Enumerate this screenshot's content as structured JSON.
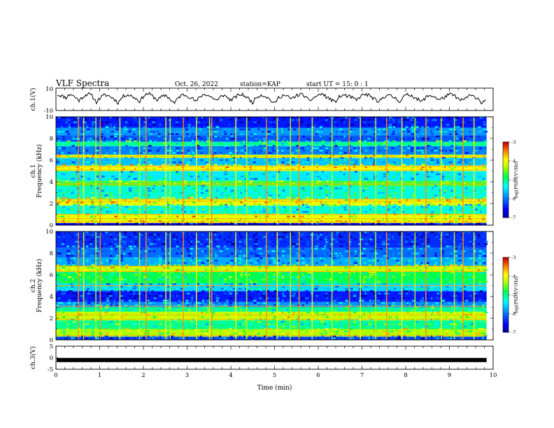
{
  "header": {
    "title": "VLF Spectra",
    "date": "Oct. 26, 2022",
    "station": "station=KAP",
    "start": "start  UT =  15: 0  : 1"
  },
  "chart_data": [
    {
      "type": "line",
      "id": "ch1_waveform",
      "ylabel": "ch.1(V)",
      "ylim": [
        -10,
        10
      ],
      "yticks": [
        "10",
        "-10"
      ],
      "xlim": [
        0,
        10
      ],
      "x_end": 9.85,
      "series": [
        {
          "values": [
            4.2,
            3.1,
            1.5,
            4.8,
            2.2,
            -1.0,
            2.5,
            5.1,
            3.0,
            -2.4,
            1.8,
            4.0,
            2.9,
            0.6,
            -3.0,
            2.1,
            4.4,
            3.2,
            1.0,
            -1.8,
            3.5,
            5.2,
            2.7,
            -0.5,
            1.9,
            3.8,
            0.2,
            -3.6,
            2.0,
            4.1,
            3.3,
            1.2,
            -2.1,
            2.6,
            4.7,
            3.0,
            0.8,
            -1.2,
            3.9,
            2.4,
            -0.8,
            1.7,
            4.3,
            3.6,
            0.9,
            -2.9,
            2.2,
            4.0,
            2.8,
            0.0,
            -4.2,
            1.5,
            3.7,
            2.5,
            0.3,
            2.9,
            4.6,
            3.1,
            -1.5,
            1.0,
            3.4,
            4.9,
            2.2,
            0.1,
            -2.6,
            2.0,
            3.8,
            2.7,
            1.4,
            -0.9,
            3.0,
            4.5,
            3.3,
            0.5,
            -3.3,
            1.6,
            3.9,
            2.6,
            1.1,
            -1.9,
            2.8,
            4.2,
            3.0,
            0.4,
            -2.4,
            1.8,
            3.6,
            2.3,
            -0.6,
            1.3,
            3.5,
            4.4,
            2.1,
            -1.3,
            0.7,
            3.2,
            2.6,
            1.0,
            -3.8,
            1.9
          ]
        }
      ]
    },
    {
      "type": "heatmap",
      "id": "ch1_spectrogram",
      "ylabel": "ch.1",
      "ylabel2": "Frequency (kHz)",
      "ylim": [
        0,
        10
      ],
      "yticks": [
        "0",
        "2",
        "4",
        "6",
        "8",
        "10"
      ],
      "xlim": [
        0,
        10
      ],
      "x_end": 9.85,
      "colorbar": {
        "label": "log(PSD)(V²/Hz)",
        "range": [
          -7,
          -3
        ],
        "ticks": [
          "-3",
          "-4",
          "-5",
          "-6",
          "-7"
        ]
      },
      "bands": [
        {
          "from": 0,
          "to": 0.2,
          "level": -6.5
        },
        {
          "from": 0.2,
          "to": 1.0,
          "level": -4.0
        },
        {
          "from": 1.0,
          "to": 1.8,
          "level": -5.2
        },
        {
          "from": 1.8,
          "to": 2.4,
          "level": -4.0
        },
        {
          "from": 2.4,
          "to": 3.6,
          "level": -5.2
        },
        {
          "from": 3.6,
          "to": 4.1,
          "level": -4.6
        },
        {
          "from": 4.1,
          "to": 5.0,
          "level": -5.4
        },
        {
          "from": 5.0,
          "to": 5.5,
          "level": -3.9
        },
        {
          "from": 5.5,
          "to": 6.2,
          "level": -5.6
        },
        {
          "from": 6.2,
          "to": 6.5,
          "level": -4.1
        },
        {
          "from": 6.5,
          "to": 7.3,
          "level": -5.9
        },
        {
          "from": 7.3,
          "to": 7.7,
          "level": -5.0
        },
        {
          "from": 7.7,
          "to": 8.3,
          "level": -6.1
        },
        {
          "from": 8.3,
          "to": 9.0,
          "level": -5.8
        },
        {
          "from": 9.0,
          "to": 10.0,
          "level": -6.4
        }
      ],
      "lines_khz": [
        0.3,
        0.6,
        1.0,
        2.2,
        2.4,
        3.8,
        5.1,
        5.4,
        6.3
      ],
      "events_min": [
        0.5,
        0.62,
        0.9,
        1.0,
        1.45,
        1.9,
        2.05,
        2.5,
        2.6,
        2.9,
        3.2,
        3.5,
        3.55,
        4.1,
        4.35,
        4.8,
        5.05,
        5.35,
        5.55,
        5.85,
        6.3,
        6.7,
        6.95,
        7.3,
        7.55,
        7.9,
        8.2,
        8.45,
        8.8,
        9.1,
        9.3,
        9.55
      ]
    },
    {
      "type": "heatmap",
      "id": "ch2_spectrogram",
      "ylabel": "ch.2",
      "ylabel2": "Frequency (kHz)",
      "ylim": [
        0,
        10
      ],
      "yticks": [
        "0",
        "2",
        "4",
        "6",
        "8",
        "10"
      ],
      "xlim": [
        0,
        10
      ],
      "x_end": 9.85,
      "colorbar": {
        "label": "log(PSD)(V²/Hz)",
        "range": [
          -7,
          -3
        ],
        "ticks": [
          "-3",
          "-4",
          "-5",
          "-6",
          "-7"
        ]
      },
      "bands": [
        {
          "from": 0,
          "to": 0.3,
          "level": -6.2
        },
        {
          "from": 0.3,
          "to": 1.0,
          "level": -4.3
        },
        {
          "from": 1.0,
          "to": 1.8,
          "level": -5.0
        },
        {
          "from": 1.8,
          "to": 2.6,
          "level": -4.2
        },
        {
          "from": 2.6,
          "to": 3.0,
          "level": -5.0
        },
        {
          "from": 3.0,
          "to": 3.5,
          "level": -5.8
        },
        {
          "from": 3.5,
          "to": 4.5,
          "level": -6.4
        },
        {
          "from": 4.5,
          "to": 5.2,
          "level": -5.5
        },
        {
          "from": 5.2,
          "to": 6.3,
          "level": -4.8
        },
        {
          "from": 6.3,
          "to": 6.8,
          "level": -4.2
        },
        {
          "from": 6.8,
          "to": 7.6,
          "level": -5.7
        },
        {
          "from": 7.6,
          "to": 8.5,
          "level": -6.0
        },
        {
          "from": 8.5,
          "to": 10.0,
          "level": -6.3
        }
      ],
      "lines_khz": [
        0.4,
        1.9,
        2.3,
        3.1,
        5.0,
        6.3,
        6.8
      ],
      "events_min": [
        0.5,
        0.62,
        0.9,
        1.0,
        1.45,
        1.9,
        2.05,
        2.5,
        2.6,
        2.9,
        3.2,
        3.5,
        3.55,
        4.1,
        4.35,
        4.8,
        5.05,
        5.35,
        5.55,
        5.85,
        6.3,
        6.7,
        6.95,
        7.3,
        7.55,
        7.9,
        8.2,
        8.45,
        8.8,
        9.1,
        9.3,
        9.55
      ]
    },
    {
      "type": "line",
      "id": "ch3_waveform",
      "ylabel": "ch.3(V)",
      "ylim": [
        -5,
        5
      ],
      "yticks": [
        "5",
        "0",
        "-5"
      ],
      "xlim": [
        0,
        10
      ],
      "x_end": 9.85,
      "xlabel": "Time  (min)",
      "xticks": [
        "0",
        "1",
        "2",
        "3",
        "4",
        "5",
        "6",
        "7",
        "8",
        "9",
        "10"
      ],
      "series": [
        {
          "values": [
            -1.0
          ]
        }
      ]
    }
  ]
}
